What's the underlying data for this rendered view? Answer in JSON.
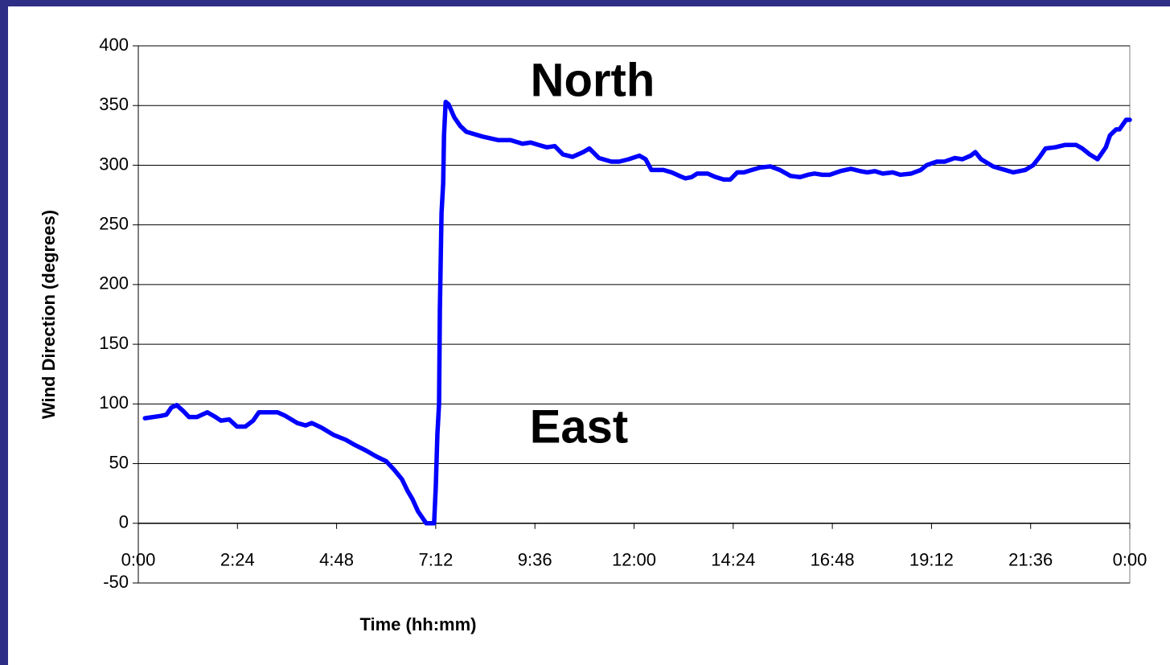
{
  "chart_data": {
    "type": "line",
    "y_label": "Wind Direction (degrees)",
    "x_label": "Time (hh:mm)",
    "annotations": [
      "North",
      "East"
    ],
    "color": "#0000ff",
    "grid": true,
    "ylim": [
      -50,
      400
    ],
    "yticks": [
      -50,
      0,
      50,
      100,
      150,
      200,
      250,
      300,
      350,
      400
    ],
    "xlim": [
      0,
      24
    ],
    "xticks": [
      {
        "value": 0,
        "label": "0:00"
      },
      {
        "value": 2.4,
        "label": "2:24"
      },
      {
        "value": 4.8,
        "label": "4:48"
      },
      {
        "value": 7.2,
        "label": "7:12"
      },
      {
        "value": 9.6,
        "label": "9:36"
      },
      {
        "value": 12,
        "label": "12:00"
      },
      {
        "value": 14.4,
        "label": "14:24"
      },
      {
        "value": 16.8,
        "label": "16:48"
      },
      {
        "value": 19.2,
        "label": "19:12"
      },
      {
        "value": 21.6,
        "label": "21:36"
      },
      {
        "value": 24,
        "label": "0:00"
      }
    ],
    "x": [
      0.16,
      0.55,
      0.68,
      0.8,
      0.93,
      1.09,
      1.23,
      1.42,
      1.67,
      1.87,
      2.0,
      2.2,
      2.39,
      2.59,
      2.78,
      2.92,
      3.37,
      3.56,
      3.85,
      4.05,
      4.2,
      4.44,
      4.73,
      5.02,
      5.22,
      5.51,
      5.76,
      6.0,
      6.19,
      6.38,
      6.52,
      6.64,
      6.77,
      6.97,
      7.16,
      7.2,
      7.24,
      7.28,
      7.3,
      7.34,
      7.38,
      7.4,
      7.44,
      7.51,
      7.65,
      7.79,
      7.94,
      8.33,
      8.72,
      9.01,
      9.3,
      9.5,
      9.69,
      9.89,
      10.08,
      10.28,
      10.51,
      10.77,
      10.92,
      11.15,
      11.45,
      11.64,
      11.87,
      12.13,
      12.28,
      12.42,
      12.71,
      12.91,
      13.1,
      13.24,
      13.39,
      13.53,
      13.78,
      13.98,
      14.17,
      14.33,
      14.5,
      14.66,
      14.85,
      15.05,
      15.3,
      15.53,
      15.79,
      16.02,
      16.21,
      16.37,
      16.55,
      16.74,
      16.99,
      17.25,
      17.48,
      17.64,
      17.83,
      18.02,
      18.26,
      18.45,
      18.71,
      18.94,
      19.08,
      19.33,
      19.52,
      19.76,
      19.95,
      20.15,
      20.26,
      20.4,
      20.69,
      20.98,
      21.18,
      21.47,
      21.66,
      21.82,
      21.96,
      22.19,
      22.44,
      22.7,
      22.85,
      23.03,
      23.22,
      23.42,
      23.52,
      23.67,
      23.75,
      23.91,
      24.0
    ],
    "values": [
      88,
      90,
      91,
      97,
      99,
      94,
      89,
      89,
      93,
      89,
      86,
      87,
      81,
      81,
      86,
      93,
      93,
      90,
      84,
      82,
      84,
      80,
      74,
      70,
      66,
      61,
      56,
      52,
      45,
      37,
      27,
      20,
      10,
      0,
      0,
      30,
      75,
      100,
      180,
      260,
      285,
      325,
      353,
      351,
      340,
      333,
      328,
      324,
      321,
      321,
      318,
      319,
      317,
      315,
      316,
      309,
      307,
      311,
      314,
      306,
      303,
      303,
      305,
      308,
      305,
      296,
      296,
      294,
      291,
      289,
      290,
      293,
      293,
      290,
      288,
      288,
      294,
      294,
      296,
      298,
      299,
      296,
      291,
      290,
      292,
      293,
      292,
      292,
      295,
      297,
      295,
      294,
      295,
      293,
      294,
      292,
      293,
      296,
      300,
      303,
      303,
      306,
      305,
      308,
      311,
      305,
      299,
      296,
      294,
      296,
      300,
      307,
      314,
      315,
      317,
      317,
      314,
      309,
      305,
      315,
      325,
      330,
      330,
      338,
      338
    ]
  }
}
